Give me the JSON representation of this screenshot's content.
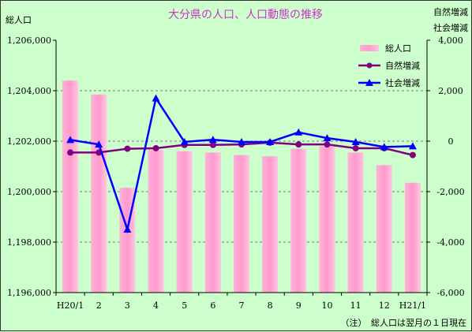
{
  "chart_data": {
    "type": "bar+line",
    "title": "大分県の人口、人口動態の推移",
    "left_axis_label": "総人口",
    "right_axis_label_1": "自然増減",
    "right_axis_label_2": "社会増減",
    "footnote": "（注）　総人口は翌月の１日現在",
    "categories": [
      "H20/1",
      "2",
      "3",
      "4",
      "5",
      "6",
      "7",
      "8",
      "9",
      "10",
      "11",
      "12",
      "H21/1"
    ],
    "left_ylim": [
      1196000,
      1206000
    ],
    "left_ticks": [
      "1,196,000",
      "1,198,000",
      "1,200,000",
      "1,202,000",
      "1,204,000",
      "1,206,000"
    ],
    "right_ylim": [
      -6000,
      4000
    ],
    "right_ticks": [
      "-6,000",
      "-4,000",
      "-2,000",
      "0",
      "2,000",
      "4,000"
    ],
    "grid": "horizontal dashed",
    "legend_position": "top-right",
    "series": [
      {
        "name": "総人口",
        "type": "bar",
        "axis": "left",
        "color": "#ff99cc",
        "values": [
          1204400,
          1203850,
          1200150,
          1201650,
          1201600,
          1201550,
          1201450,
          1201400,
          1201700,
          1201800,
          1201550,
          1201050,
          1200350
        ]
      },
      {
        "name": "自然増減",
        "type": "line",
        "axis": "right",
        "color": "#800080",
        "marker": "circle",
        "values": [
          -450,
          -450,
          -300,
          -280,
          -150,
          -150,
          -130,
          -60,
          -130,
          -130,
          -280,
          -280,
          -550
        ]
      },
      {
        "name": "社会増減",
        "type": "line",
        "axis": "right",
        "color": "#0000ff",
        "marker": "triangle",
        "values": [
          50,
          -130,
          -3500,
          1700,
          -30,
          60,
          -30,
          -30,
          350,
          120,
          -30,
          -230,
          -200
        ]
      }
    ]
  }
}
